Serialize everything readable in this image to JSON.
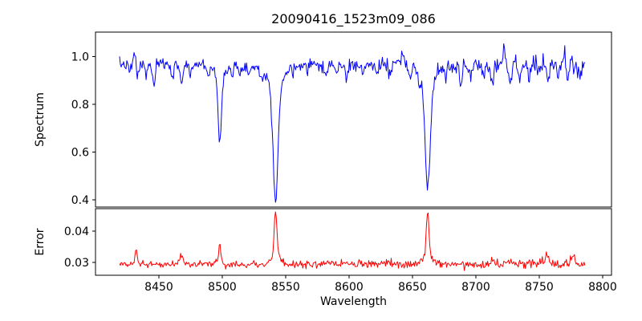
{
  "figure": {
    "background": "#ffffff",
    "frame_color": "#000000"
  },
  "chart_data": {
    "type": "line",
    "title": "20090416_1523m09_086",
    "xlabel": "Wavelength",
    "xlim": [
      8400,
      8807
    ],
    "x_data_range": [
      8419,
      8786
    ],
    "x_ticks": [
      8450,
      8500,
      8550,
      8600,
      8650,
      8700,
      8750,
      8800
    ],
    "n_points": 580,
    "noise_seed": 7,
    "grid": false,
    "legend": "none",
    "subplots": [
      {
        "name": "spectrum",
        "ylabel": "Spectrum",
        "line_color": "#0000ff",
        "ylim": [
          0.37,
          1.103
        ],
        "y_ticks": [
          {
            "value": 0.4,
            "label": "0.4"
          },
          {
            "value": 0.6,
            "label": "0.6"
          },
          {
            "value": 0.8,
            "label": "0.8"
          },
          {
            "value": 1.0,
            "label": "1.0"
          }
        ],
        "continuum": 0.968,
        "noise_sigma": [
          0.012,
          0.02
        ],
        "absorption_lines": [
          {
            "center": 8498,
            "minimum": 0.63,
            "core_depth": 0.3,
            "core_sigma": 1.3,
            "wing_depth": 0.04,
            "wing_sigma": 4.0
          },
          {
            "center": 8542,
            "minimum": 0.41,
            "core_depth": 0.46,
            "core_sigma": 1.9,
            "wing_depth": 0.1,
            "wing_sigma": 6.0
          },
          {
            "center": 8662,
            "minimum": 0.45,
            "core_depth": 0.42,
            "core_sigma": 1.9,
            "wing_depth": 0.1,
            "wing_sigma": 5.5
          }
        ],
        "minor_line_sigma": 1.1,
        "minor_absorption_lines": [
          [
            8427,
            0.03
          ],
          [
            8433,
            0.05
          ],
          [
            8440,
            0.04
          ],
          [
            8446,
            0.085
          ],
          [
            8461,
            0.05
          ],
          [
            8468,
            0.075
          ],
          [
            8475,
            0.04
          ],
          [
            8489,
            0.04
          ],
          [
            8508,
            0.05
          ],
          [
            8514,
            0.055
          ],
          [
            8521,
            0.045
          ],
          [
            8531,
            0.05
          ],
          [
            8556,
            0.04
          ],
          [
            8568,
            0.035
          ],
          [
            8582,
            0.05
          ],
          [
            8590,
            0.04
          ],
          [
            8598,
            0.065
          ],
          [
            8611,
            0.045
          ],
          [
            8621,
            0.04
          ],
          [
            8632,
            0.045
          ],
          [
            8648,
            0.05
          ],
          [
            8655,
            0.04
          ],
          [
            8676,
            0.05
          ],
          [
            8683,
            0.04
          ],
          [
            8688,
            0.085
          ],
          [
            8696,
            0.05
          ],
          [
            8706,
            0.045
          ],
          [
            8713,
            0.075
          ],
          [
            8727,
            0.065
          ],
          [
            8734,
            0.05
          ],
          [
            8742,
            0.055
          ],
          [
            8750,
            0.045
          ],
          [
            8757,
            0.06
          ],
          [
            8765,
            0.045
          ],
          [
            8772,
            0.05
          ],
          [
            8782,
            0.045
          ]
        ],
        "minor_emission_peaks": [
          [
            8431,
            0.06
          ],
          [
            8569,
            0.05
          ],
          [
            8643,
            0.045
          ],
          [
            8722,
            0.09
          ],
          [
            8770,
            0.055
          ]
        ]
      },
      {
        "name": "error",
        "ylabel": "Error",
        "line_color": "#ff0000",
        "ylim": [
          0.0259,
          0.0472
        ],
        "y_ticks": [
          {
            "value": 0.03,
            "label": "0.03"
          },
          {
            "value": 0.04,
            "label": "0.04"
          }
        ],
        "baseline": 0.0293,
        "baseline_drift": 0.0003,
        "noise_sigma": [
          0.00045,
          0.00075
        ],
        "spikes": [
          {
            "center": 8432,
            "height": 0.0035,
            "sigma": 0.8,
            "wing_height": 0.001,
            "wing_sigma": 2.5
          },
          {
            "center": 8468,
            "height": 0.0018,
            "sigma": 1.2,
            "wing_height": 0.0008,
            "wing_sigma": 3.0
          },
          {
            "center": 8498,
            "height": 0.005,
            "sigma": 0.9,
            "wing_height": 0.0012,
            "wing_sigma": 3.0
          },
          {
            "center": 8542,
            "height": 0.014,
            "sigma": 1.0,
            "wing_height": 0.003,
            "wing_sigma": 3.5
          },
          {
            "center": 8662,
            "height": 0.0135,
            "sigma": 1.0,
            "wing_height": 0.003,
            "wing_sigma": 3.5
          },
          {
            "center": 8713,
            "height": 0.0012,
            "sigma": 1.0,
            "wing_height": 0.0004,
            "wing_sigma": 2.0
          },
          {
            "center": 8756,
            "height": 0.0026,
            "sigma": 1.0,
            "wing_height": 0.0006,
            "wing_sigma": 2.5
          },
          {
            "center": 8777,
            "height": 0.0028,
            "sigma": 0.9,
            "wing_height": 0.0006,
            "wing_sigma": 2.5
          }
        ]
      }
    ]
  }
}
